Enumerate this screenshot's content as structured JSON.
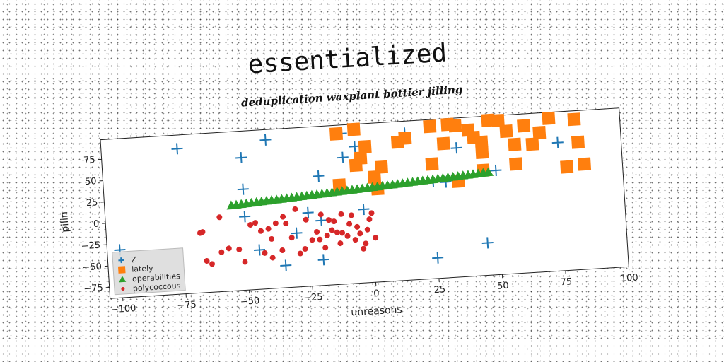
{
  "chart_data": {
    "type": "scatter",
    "title": "essentialized",
    "subtitle": "deduplication waxplant bottier jilling",
    "xlabel": "unreasons",
    "ylabel": "pilin",
    "xlim": [
      -105,
      100
    ],
    "ylim": [
      -88,
      98
    ],
    "xticks": [
      -100,
      -75,
      -50,
      -25,
      0,
      25,
      50,
      75,
      100
    ],
    "yticks": [
      -75,
      -50,
      -25,
      0,
      25,
      50,
      75
    ],
    "grid": false,
    "legend_position": "lower-left",
    "series": [
      {
        "name": "Z",
        "marker": "plus",
        "color": "#1f77b4",
        "points": [
          [
            -100,
            -32
          ],
          [
            -75,
            82
          ],
          [
            -50,
            67
          ],
          [
            -50,
            30
          ],
          [
            -50,
            -2
          ],
          [
            -40,
            86
          ],
          [
            -45,
            -42
          ],
          [
            -35,
            -62
          ],
          [
            -30,
            -25
          ],
          [
            -20,
            -58
          ],
          [
            -20,
            -12
          ],
          [
            -25,
            -2
          ],
          [
            -20,
            40
          ],
          [
            -10,
            88
          ],
          [
            -10,
            60
          ],
          [
            -5,
            72
          ],
          [
            -3,
            -2
          ],
          [
            15,
            84
          ],
          [
            25,
            -64
          ],
          [
            25,
            26
          ],
          [
            30,
            24
          ],
          [
            35,
            63
          ],
          [
            45,
            -50
          ],
          [
            50,
            34
          ],
          [
            75,
            62
          ]
        ]
      },
      {
        "name": "lately",
        "marker": "square",
        "color": "#ff7f0e",
        "points": [
          [
            -12,
            88
          ],
          [
            -5,
            92
          ],
          [
            -3,
            58
          ],
          [
            -5,
            50
          ],
          [
            -1,
            71
          ],
          [
            2,
            35
          ],
          [
            5,
            46
          ],
          [
            -12,
            28
          ],
          [
            3,
            21
          ],
          [
            12,
            74
          ],
          [
            15,
            78
          ],
          [
            25,
            46
          ],
          [
            25,
            90
          ],
          [
            30,
            69
          ],
          [
            32,
            91
          ],
          [
            35,
            89
          ],
          [
            35,
            24
          ],
          [
            40,
            83
          ],
          [
            42,
            74
          ],
          [
            45,
            68
          ],
          [
            45,
            35
          ],
          [
            45,
            56
          ],
          [
            48,
            93
          ],
          [
            52,
            92
          ],
          [
            55,
            79
          ],
          [
            58,
            63
          ],
          [
            58,
            40
          ],
          [
            62,
            84
          ],
          [
            65,
            62
          ],
          [
            68,
            75
          ],
          [
            72,
            91
          ],
          [
            78,
            33
          ],
          [
            82,
            88
          ],
          [
            83,
            61
          ],
          [
            85,
            35
          ]
        ]
      },
      {
        "name": "operabilities",
        "marker": "triangle",
        "color": "#2ca02c",
        "points": [
          [
            -55,
            12
          ],
          [
            -53,
            12.4
          ],
          [
            -51,
            12.8
          ],
          [
            -49,
            13.2
          ],
          [
            -47,
            13.6
          ],
          [
            -45,
            14
          ],
          [
            -43,
            14.4
          ],
          [
            -41,
            14.8
          ],
          [
            -39,
            15.2
          ],
          [
            -37,
            15.6
          ],
          [
            -35,
            16
          ],
          [
            -33,
            16.4
          ],
          [
            -31,
            16.8
          ],
          [
            -29,
            17.2
          ],
          [
            -27,
            17.6
          ],
          [
            -25,
            18
          ],
          [
            -23,
            18.4
          ],
          [
            -21,
            18.8
          ],
          [
            -19,
            19.2
          ],
          [
            -17,
            19.6
          ],
          [
            -15,
            20
          ],
          [
            -13,
            20.4
          ],
          [
            -11,
            20.8
          ],
          [
            -9,
            21.2
          ],
          [
            -7,
            21.6
          ],
          [
            -5,
            22
          ],
          [
            -3,
            22.4
          ],
          [
            -1,
            22.8
          ],
          [
            1,
            23.2
          ],
          [
            3,
            23.6
          ],
          [
            5,
            24
          ],
          [
            7,
            24.4
          ],
          [
            9,
            24.8
          ],
          [
            11,
            25.2
          ],
          [
            13,
            25.6
          ],
          [
            15,
            26
          ],
          [
            17,
            26.4
          ],
          [
            19,
            26.8
          ],
          [
            21,
            27.2
          ],
          [
            23,
            27.6
          ],
          [
            25,
            28
          ],
          [
            27,
            28.4
          ],
          [
            29,
            28.8
          ],
          [
            31,
            29.2
          ],
          [
            33,
            29.6
          ],
          [
            35,
            30
          ],
          [
            37,
            30.4
          ],
          [
            39,
            30.8
          ],
          [
            41,
            31.2
          ],
          [
            43,
            31.6
          ],
          [
            45,
            32
          ],
          [
            47,
            32.4
          ]
        ]
      },
      {
        "name": "polycoccous",
        "marker": "circle",
        "color": "#d62728",
        "points": [
          [
            -67,
            -17
          ],
          [
            -68,
            -18
          ],
          [
            -66,
            -51
          ],
          [
            -64,
            -55
          ],
          [
            -60,
            -42
          ],
          [
            -60,
            -1
          ],
          [
            -57,
            -38
          ],
          [
            -53,
            -40
          ],
          [
            -51,
            -55
          ],
          [
            -48,
            -12
          ],
          [
            -46,
            -10
          ],
          [
            -44,
            -20
          ],
          [
            -43,
            -46
          ],
          [
            -41,
            -18
          ],
          [
            -40,
            -30
          ],
          [
            -38,
            -12
          ],
          [
            -40,
            -52
          ],
          [
            -36,
            -44
          ],
          [
            -34,
            -13
          ],
          [
            -32,
            -30
          ],
          [
            -30,
            3
          ],
          [
            -29,
            -49
          ],
          [
            -27,
            -44
          ],
          [
            -26,
            -10
          ],
          [
            -24,
            -34
          ],
          [
            -22,
            -25
          ],
          [
            -21,
            -34
          ],
          [
            -19,
            -44
          ],
          [
            -18,
            -30
          ],
          [
            -17,
            -12
          ],
          [
            -16,
            -24
          ],
          [
            -15,
            -14
          ],
          [
            -14,
            -27
          ],
          [
            -13,
            -40
          ],
          [
            -12,
            -6
          ],
          [
            -12,
            -28
          ],
          [
            -10,
            -32
          ],
          [
            -8,
            -8
          ],
          [
            -7,
            -37
          ],
          [
            -6,
            -22
          ],
          [
            -5,
            -30
          ],
          [
            -3,
            -42
          ],
          [
            -4,
            -48
          ],
          [
            -2,
            -26
          ],
          [
            -1,
            -14
          ],
          [
            1,
            -36
          ],
          [
            0,
            -7
          ],
          [
            -9,
            -18
          ],
          [
            -20,
            -5
          ],
          [
            -35,
            -5
          ]
        ]
      }
    ]
  }
}
